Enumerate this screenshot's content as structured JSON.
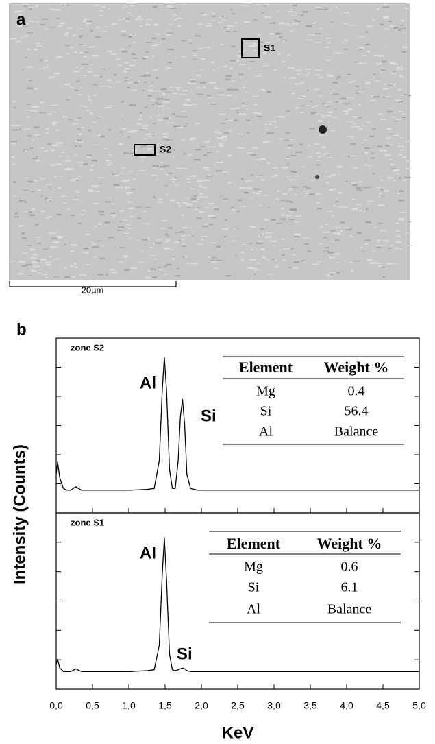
{
  "image_panel": {
    "label": "a",
    "markers": [
      "S1",
      "S2"
    ],
    "scale_bar": "20µm"
  },
  "chart_panel_label": "b",
  "y_label": "Intensity (Counts)",
  "x_axis": {
    "label": "KeV",
    "lim": [
      0,
      5
    ],
    "ticks": [
      {
        "value": 0,
        "label": "0,0"
      },
      {
        "value": 0.5,
        "label": "0,5"
      },
      {
        "value": 1,
        "label": "1,0"
      },
      {
        "value": 1.5,
        "label": "1,5"
      },
      {
        "value": 2,
        "label": "2,0"
      },
      {
        "value": 2.5,
        "label": "2,5"
      },
      {
        "value": 3,
        "label": "3,0"
      },
      {
        "value": 3.5,
        "label": "3,5"
      },
      {
        "value": 4,
        "label": "4,0"
      },
      {
        "value": 4.5,
        "label": "4,5"
      },
      {
        "value": 5,
        "label": "5,0"
      }
    ]
  },
  "chart_data": [
    {
      "type": "line",
      "title": "zone S2",
      "color": "#000000",
      "ylim": [
        0,
        100
      ],
      "x": [
        0,
        0.02,
        0.05,
        0.1,
        0.15,
        0.2,
        0.27,
        0.35,
        0.5,
        1.0,
        1.25,
        1.35,
        1.42,
        1.46,
        1.49,
        1.52,
        1.56,
        1.6,
        1.64,
        1.68,
        1.71,
        1.74,
        1.77,
        1.8,
        1.85,
        1.95,
        2.5,
        3,
        4,
        5
      ],
      "values": [
        22,
        29,
        20,
        14,
        13,
        13,
        15,
        13,
        13,
        13,
        13.5,
        14,
        30,
        70,
        89,
        70,
        25,
        14,
        14,
        30,
        55,
        65,
        50,
        22,
        14,
        13,
        13,
        13,
        13,
        13
      ],
      "annotations": [
        "Al",
        "Si"
      ],
      "table": {
        "header": [
          "Element",
          "Weight %"
        ],
        "rows": [
          [
            "Mg",
            "0.4"
          ],
          [
            "Si",
            "56.4"
          ],
          [
            "Al",
            "Balance"
          ]
        ]
      }
    },
    {
      "type": "line",
      "title": "zone S1",
      "color": "#000000",
      "ylim": [
        0,
        100
      ],
      "x": [
        0,
        0.02,
        0.05,
        0.1,
        0.15,
        0.2,
        0.27,
        0.35,
        0.5,
        1.0,
        1.25,
        1.35,
        1.42,
        1.46,
        1.49,
        1.52,
        1.56,
        1.6,
        1.64,
        1.68,
        1.71,
        1.74,
        1.77,
        1.8,
        1.85,
        1.95,
        2.5,
        3,
        4,
        5
      ],
      "values": [
        14,
        17,
        12,
        10,
        10,
        10,
        11.5,
        10,
        10,
        10,
        10.5,
        11,
        25,
        65,
        86,
        62,
        20,
        11,
        10.5,
        11,
        11.5,
        12,
        11.5,
        10.5,
        10,
        10,
        10,
        10,
        10,
        10
      ],
      "annotations": [
        "Al",
        "Si"
      ],
      "table": {
        "header": [
          "Element",
          "Weight %"
        ],
        "rows": [
          [
            "Mg",
            "0.6"
          ],
          [
            "Si",
            "6.1"
          ],
          [
            "Al",
            "Balance"
          ]
        ]
      }
    }
  ]
}
